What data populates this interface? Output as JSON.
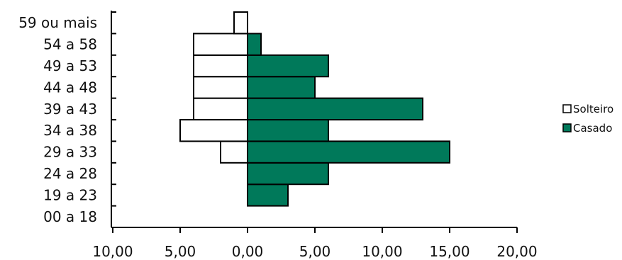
{
  "chart_data": {
    "type": "bar",
    "orientation": "horizontal",
    "layout": "population-pyramid",
    "title": "",
    "xlabel": "",
    "ylabel": "",
    "categories": [
      "00 a 18",
      "19 a 23",
      "24 a 28",
      "29 a 33",
      "34 a 38",
      "39 a 43",
      "44 a 48",
      "49 a 53",
      "54 a 58",
      "59 ou mais"
    ],
    "series": [
      {
        "name": "Solteiro",
        "values": [
          0,
          0,
          0,
          2,
          5,
          4,
          4,
          4,
          4,
          1
        ],
        "direction": "left",
        "color": "#ffffff"
      },
      {
        "name": "Casado",
        "values": [
          0,
          3,
          6,
          15,
          6,
          13,
          5,
          6,
          1,
          0
        ],
        "direction": "right",
        "color": "#00795a"
      }
    ],
    "xlim": [
      -10,
      20
    ],
    "xticks": [
      {
        "value": -10,
        "label": "10,00"
      },
      {
        "value": -5,
        "label": "5,00"
      },
      {
        "value": 0,
        "label": "0,00"
      },
      {
        "value": 5,
        "label": "5,00"
      },
      {
        "value": 10,
        "label": "10,00"
      },
      {
        "value": 15,
        "label": "15,00"
      },
      {
        "value": 20,
        "label": "20,00"
      }
    ],
    "grid": false,
    "legend": "right",
    "bar_outline_color": "#000000"
  }
}
